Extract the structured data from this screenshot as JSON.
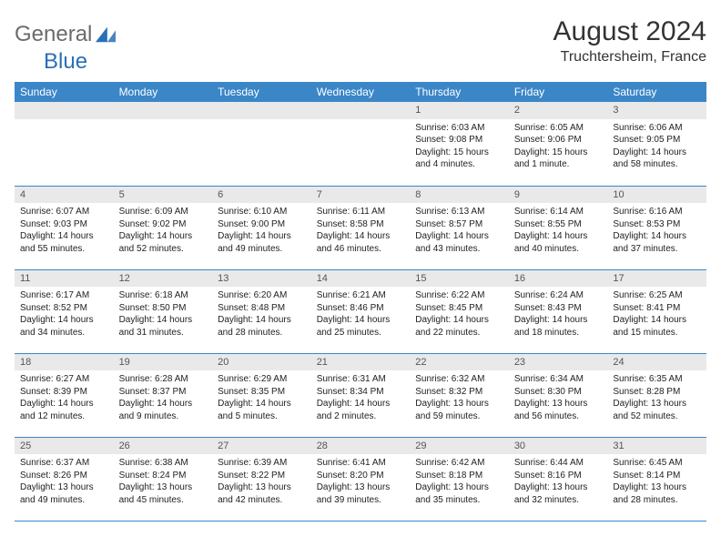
{
  "logo": {
    "text_a": "General",
    "text_b": "Blue",
    "tri_color": "#2a6fb5",
    "text_a_color": "#6b6b6b"
  },
  "title": "August 2024",
  "location": "Truchtersheim, France",
  "header_bg": "#3b86c7",
  "daynum_bg": "#e9e9e9",
  "row_border": "#3b86c7",
  "weekdays": [
    "Sunday",
    "Monday",
    "Tuesday",
    "Wednesday",
    "Thursday",
    "Friday",
    "Saturday"
  ],
  "weeks": [
    [
      null,
      null,
      null,
      null,
      {
        "n": "1",
        "sr": "6:03 AM",
        "ss": "9:08 PM",
        "dl": "15 hours and 4 minutes."
      },
      {
        "n": "2",
        "sr": "6:05 AM",
        "ss": "9:06 PM",
        "dl": "15 hours and 1 minute."
      },
      {
        "n": "3",
        "sr": "6:06 AM",
        "ss": "9:05 PM",
        "dl": "14 hours and 58 minutes."
      }
    ],
    [
      {
        "n": "4",
        "sr": "6:07 AM",
        "ss": "9:03 PM",
        "dl": "14 hours and 55 minutes."
      },
      {
        "n": "5",
        "sr": "6:09 AM",
        "ss": "9:02 PM",
        "dl": "14 hours and 52 minutes."
      },
      {
        "n": "6",
        "sr": "6:10 AM",
        "ss": "9:00 PM",
        "dl": "14 hours and 49 minutes."
      },
      {
        "n": "7",
        "sr": "6:11 AM",
        "ss": "8:58 PM",
        "dl": "14 hours and 46 minutes."
      },
      {
        "n": "8",
        "sr": "6:13 AM",
        "ss": "8:57 PM",
        "dl": "14 hours and 43 minutes."
      },
      {
        "n": "9",
        "sr": "6:14 AM",
        "ss": "8:55 PM",
        "dl": "14 hours and 40 minutes."
      },
      {
        "n": "10",
        "sr": "6:16 AM",
        "ss": "8:53 PM",
        "dl": "14 hours and 37 minutes."
      }
    ],
    [
      {
        "n": "11",
        "sr": "6:17 AM",
        "ss": "8:52 PM",
        "dl": "14 hours and 34 minutes."
      },
      {
        "n": "12",
        "sr": "6:18 AM",
        "ss": "8:50 PM",
        "dl": "14 hours and 31 minutes."
      },
      {
        "n": "13",
        "sr": "6:20 AM",
        "ss": "8:48 PM",
        "dl": "14 hours and 28 minutes."
      },
      {
        "n": "14",
        "sr": "6:21 AM",
        "ss": "8:46 PM",
        "dl": "14 hours and 25 minutes."
      },
      {
        "n": "15",
        "sr": "6:22 AM",
        "ss": "8:45 PM",
        "dl": "14 hours and 22 minutes."
      },
      {
        "n": "16",
        "sr": "6:24 AM",
        "ss": "8:43 PM",
        "dl": "14 hours and 18 minutes."
      },
      {
        "n": "17",
        "sr": "6:25 AM",
        "ss": "8:41 PM",
        "dl": "14 hours and 15 minutes."
      }
    ],
    [
      {
        "n": "18",
        "sr": "6:27 AM",
        "ss": "8:39 PM",
        "dl": "14 hours and 12 minutes."
      },
      {
        "n": "19",
        "sr": "6:28 AM",
        "ss": "8:37 PM",
        "dl": "14 hours and 9 minutes."
      },
      {
        "n": "20",
        "sr": "6:29 AM",
        "ss": "8:35 PM",
        "dl": "14 hours and 5 minutes."
      },
      {
        "n": "21",
        "sr": "6:31 AM",
        "ss": "8:34 PM",
        "dl": "14 hours and 2 minutes."
      },
      {
        "n": "22",
        "sr": "6:32 AM",
        "ss": "8:32 PM",
        "dl": "13 hours and 59 minutes."
      },
      {
        "n": "23",
        "sr": "6:34 AM",
        "ss": "8:30 PM",
        "dl": "13 hours and 56 minutes."
      },
      {
        "n": "24",
        "sr": "6:35 AM",
        "ss": "8:28 PM",
        "dl": "13 hours and 52 minutes."
      }
    ],
    [
      {
        "n": "25",
        "sr": "6:37 AM",
        "ss": "8:26 PM",
        "dl": "13 hours and 49 minutes."
      },
      {
        "n": "26",
        "sr": "6:38 AM",
        "ss": "8:24 PM",
        "dl": "13 hours and 45 minutes."
      },
      {
        "n": "27",
        "sr": "6:39 AM",
        "ss": "8:22 PM",
        "dl": "13 hours and 42 minutes."
      },
      {
        "n": "28",
        "sr": "6:41 AM",
        "ss": "8:20 PM",
        "dl": "13 hours and 39 minutes."
      },
      {
        "n": "29",
        "sr": "6:42 AM",
        "ss": "8:18 PM",
        "dl": "13 hours and 35 minutes."
      },
      {
        "n": "30",
        "sr": "6:44 AM",
        "ss": "8:16 PM",
        "dl": "13 hours and 32 minutes."
      },
      {
        "n": "31",
        "sr": "6:45 AM",
        "ss": "8:14 PM",
        "dl": "13 hours and 28 minutes."
      }
    ]
  ],
  "labels": {
    "sunrise": "Sunrise: ",
    "sunset": "Sunset: ",
    "daylight": "Daylight: "
  }
}
